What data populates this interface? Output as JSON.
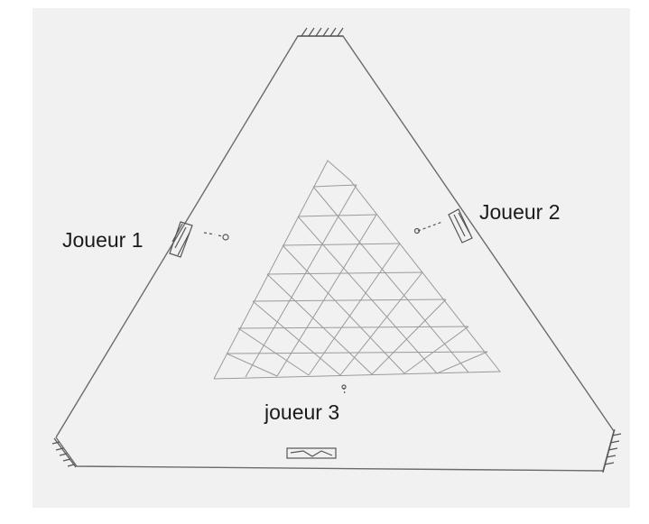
{
  "diagram": {
    "players": [
      {
        "id": "p1",
        "label": "Joueur 1"
      },
      {
        "id": "p2",
        "label": "Joueur 2"
      },
      {
        "id": "p3",
        "label": "joueur 3"
      }
    ],
    "colors": {
      "paper": "#f1f1f1",
      "pencil": "#6b6b6b",
      "grid": "#9a9a9a",
      "text": "#1a1a1a"
    }
  }
}
